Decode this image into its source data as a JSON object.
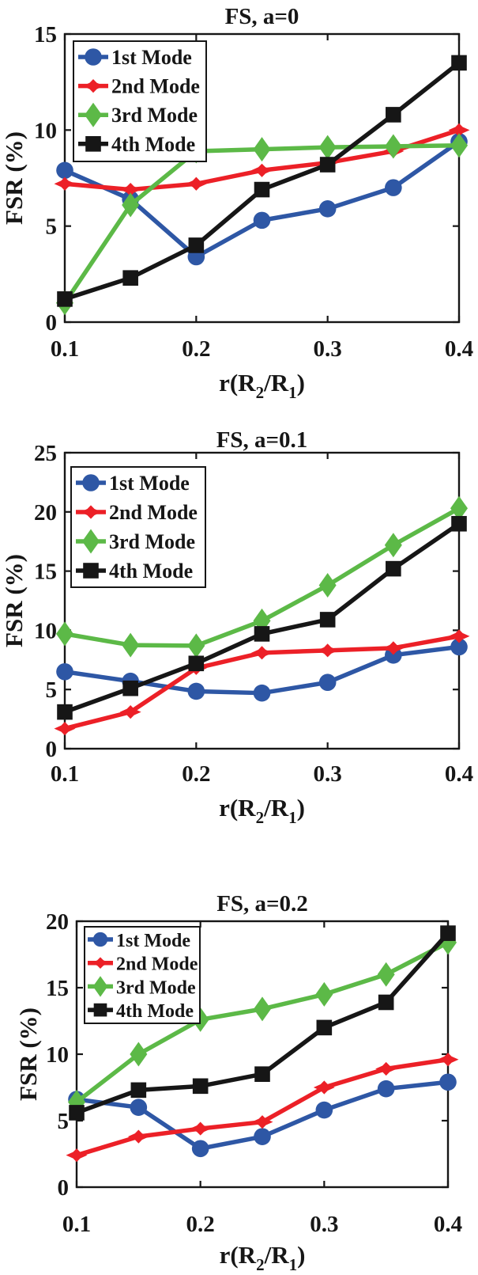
{
  "figure": {
    "background": "#ffffff",
    "text_color": "#161616",
    "series_colors": {
      "mode1_blue": "#2e57a5",
      "mode2_red": "#ec2027",
      "mode3_green": "#5cb947",
      "mode4_black": "#161616"
    }
  },
  "chart_data": [
    {
      "type": "line",
      "title": "FS, a=0",
      "xlabel": "r(R2/R1)",
      "xlabel_parts": {
        "pre": "r(R",
        "sub1": "2",
        "mid": "/R",
        "sub2": "1",
        "post": ")"
      },
      "ylabel": "FSR (%)",
      "x": [
        0.1,
        0.15,
        0.2,
        0.25,
        0.3,
        0.35,
        0.4
      ],
      "xlim": [
        0.1,
        0.4
      ],
      "xticks": [
        0.1,
        0.2,
        0.3,
        0.4
      ],
      "xtick_labels": [
        "0.1",
        "0.2",
        "0.3",
        "0.4"
      ],
      "ylim": [
        0,
        15
      ],
      "yticks": [
        0,
        5,
        10,
        15
      ],
      "ytick_labels": [
        "0",
        "5",
        "10",
        "15"
      ],
      "grid": false,
      "legend_position": "upper-left",
      "series": [
        {
          "name": "1st Mode",
          "marker": "circle",
          "color": "#2e57a5",
          "values": [
            7.9,
            6.4,
            3.4,
            5.3,
            5.9,
            7.0,
            9.4
          ]
        },
        {
          "name": "2nd Mode",
          "marker": "star4",
          "color": "#ec2027",
          "values": [
            7.2,
            6.9,
            7.2,
            7.9,
            8.3,
            8.9,
            10.0
          ]
        },
        {
          "name": "3rd Mode",
          "marker": "diamond",
          "color": "#5cb947",
          "values": [
            1.0,
            6.1,
            8.9,
            9.0,
            9.1,
            9.15,
            9.2
          ]
        },
        {
          "name": "4th Mode",
          "marker": "square",
          "color": "#161616",
          "values": [
            1.2,
            2.3,
            4.0,
            6.9,
            8.2,
            10.8,
            13.5
          ]
        }
      ]
    },
    {
      "type": "line",
      "title": "FS, a=0.1",
      "xlabel": "r(R2/R1)",
      "xlabel_parts": {
        "pre": "r(R",
        "sub1": "2",
        "mid": "/R",
        "sub2": "1",
        "post": ")"
      },
      "ylabel": "FSR (%)",
      "x": [
        0.1,
        0.15,
        0.2,
        0.25,
        0.3,
        0.35,
        0.4
      ],
      "xlim": [
        0.1,
        0.4
      ],
      "xticks": [
        0.1,
        0.2,
        0.3,
        0.4
      ],
      "xtick_labels": [
        "0.1",
        "0.2",
        "0.3",
        "0.4"
      ],
      "ylim": [
        0,
        25
      ],
      "yticks": [
        0,
        5,
        10,
        15,
        20,
        25
      ],
      "ytick_labels": [
        "0",
        "5",
        "10",
        "15",
        "20",
        "25"
      ],
      "grid": false,
      "legend_position": "upper-left",
      "series": [
        {
          "name": "1st Mode",
          "marker": "circle",
          "color": "#2e57a5",
          "values": [
            6.5,
            5.7,
            4.85,
            4.7,
            5.6,
            7.9,
            8.6
          ]
        },
        {
          "name": "2nd Mode",
          "marker": "star4",
          "color": "#ec2027",
          "values": [
            1.7,
            3.1,
            6.8,
            8.1,
            8.3,
            8.5,
            9.5
          ]
        },
        {
          "name": "3rd Mode",
          "marker": "diamond",
          "color": "#5cb947",
          "values": [
            9.7,
            8.75,
            8.7,
            10.8,
            13.8,
            17.2,
            20.3
          ]
        },
        {
          "name": "4th Mode",
          "marker": "square",
          "color": "#161616",
          "values": [
            3.1,
            5.1,
            7.2,
            9.7,
            10.9,
            15.2,
            19.0
          ]
        }
      ]
    },
    {
      "type": "line",
      "title": "FS, a=0.2",
      "xlabel": "r(R2/R1)",
      "xlabel_parts": {
        "pre": "r(R",
        "sub1": "2",
        "mid": "/R",
        "sub2": "1",
        "post": ")"
      },
      "ylabel": "FSR (%)",
      "x": [
        0.1,
        0.15,
        0.2,
        0.25,
        0.3,
        0.35,
        0.4
      ],
      "xlim": [
        0.1,
        0.4
      ],
      "xticks": [
        0.1,
        0.2,
        0.3,
        0.4
      ],
      "xtick_labels": [
        "0.1",
        "0.2",
        "0.3",
        "0.4"
      ],
      "ylim": [
        0,
        20
      ],
      "yticks": [
        0,
        5,
        10,
        15,
        20
      ],
      "ytick_labels": [
        "0",
        "5",
        "10",
        "15",
        "20"
      ],
      "grid": false,
      "legend_position": "upper-left",
      "series": [
        {
          "name": "1st Mode",
          "marker": "circle",
          "color": "#2e57a5",
          "values": [
            6.6,
            6.0,
            2.9,
            3.8,
            5.8,
            7.4,
            7.9
          ]
        },
        {
          "name": "2nd Mode",
          "marker": "star4",
          "color": "#ec2027",
          "values": [
            2.4,
            3.8,
            4.4,
            4.9,
            7.5,
            8.9,
            9.6
          ]
        },
        {
          "name": "3rd Mode",
          "marker": "diamond",
          "color": "#5cb947",
          "values": [
            6.4,
            10.0,
            12.6,
            13.4,
            14.5,
            16.0,
            18.4
          ]
        },
        {
          "name": "4th Mode",
          "marker": "square",
          "color": "#161616",
          "values": [
            5.6,
            7.3,
            7.6,
            8.5,
            12.0,
            13.9,
            19.1
          ]
        }
      ]
    }
  ]
}
